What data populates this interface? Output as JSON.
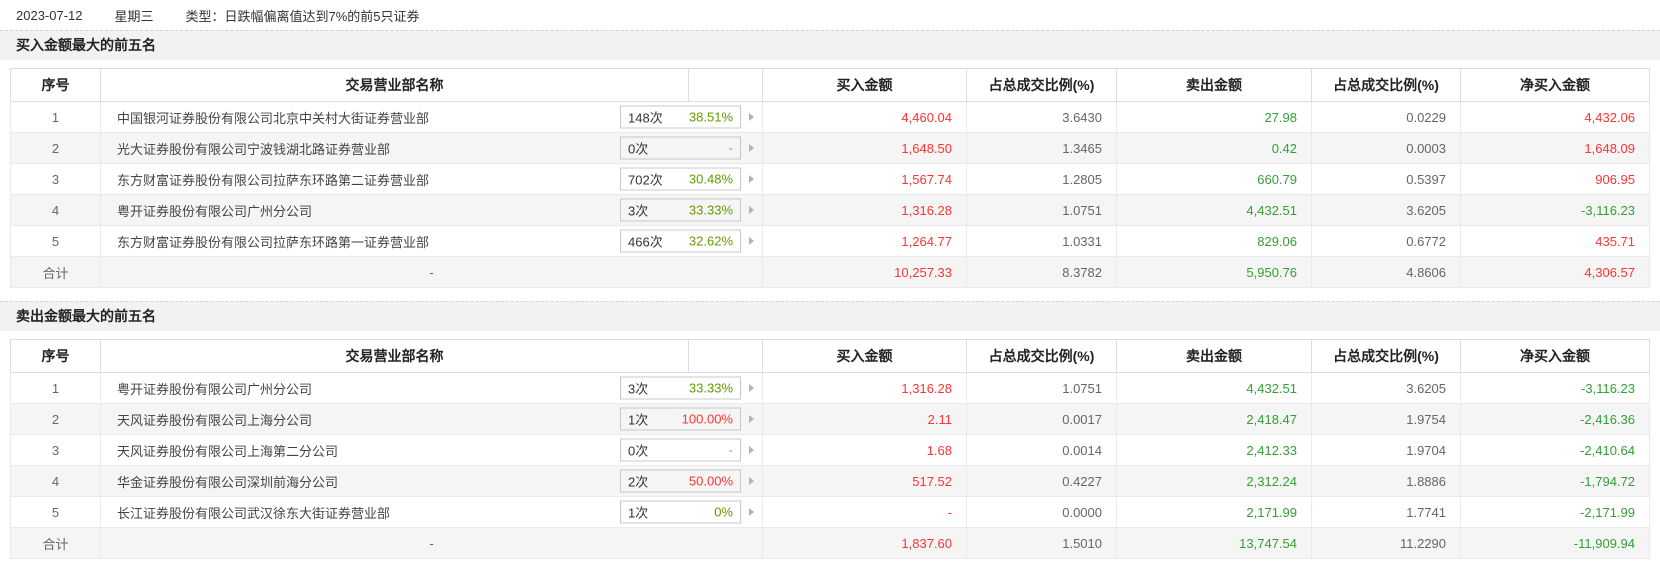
{
  "header": {
    "date": "2023-07-12",
    "weekday": "星期三",
    "type": "类型：日跌幅偏离值达到7%的前5只证券"
  },
  "colors": {
    "red": "#ff3333",
    "green": "#33a033",
    "gray": "#666666",
    "badge_green": "#669900",
    "badge_red": "#ff3333",
    "badge_gray": "#999999"
  },
  "columns": [
    "序号",
    "交易营业部名称",
    "买入金额",
    "占总成交比例(%)",
    "卖出金额",
    "占总成交比例(%)",
    "净买入金额"
  ],
  "sections": [
    {
      "title": "买入金额最大的前五名",
      "rows": [
        {
          "no": "1",
          "name": "中国银河证券股份有限公司北京中关村大街证券营业部",
          "count": "148次",
          "pct": "38.51%",
          "pct_color": "green",
          "cells": [
            {
              "v": "4,460.04",
              "c": "red"
            },
            {
              "v": "3.6430",
              "c": "gray"
            },
            {
              "v": "27.98",
              "c": "green"
            },
            {
              "v": "0.0229",
              "c": "gray"
            },
            {
              "v": "4,432.06",
              "c": "red"
            }
          ]
        },
        {
          "no": "2",
          "name": "光大证券股份有限公司宁波钱湖北路证券营业部",
          "count": "0次",
          "pct": "-",
          "pct_color": "gray",
          "cells": [
            {
              "v": "1,648.50",
              "c": "red"
            },
            {
              "v": "1.3465",
              "c": "gray"
            },
            {
              "v": "0.42",
              "c": "green"
            },
            {
              "v": "0.0003",
              "c": "gray"
            },
            {
              "v": "1,648.09",
              "c": "red"
            }
          ]
        },
        {
          "no": "3",
          "name": "东方财富证券股份有限公司拉萨东环路第二证券营业部",
          "count": "702次",
          "pct": "30.48%",
          "pct_color": "green",
          "cells": [
            {
              "v": "1,567.74",
              "c": "red"
            },
            {
              "v": "1.2805",
              "c": "gray"
            },
            {
              "v": "660.79",
              "c": "green"
            },
            {
              "v": "0.5397",
              "c": "gray"
            },
            {
              "v": "906.95",
              "c": "red"
            }
          ]
        },
        {
          "no": "4",
          "name": "粤开证券股份有限公司广州分公司",
          "count": "3次",
          "pct": "33.33%",
          "pct_color": "green",
          "cells": [
            {
              "v": "1,316.28",
              "c": "red"
            },
            {
              "v": "1.0751",
              "c": "gray"
            },
            {
              "v": "4,432.51",
              "c": "green"
            },
            {
              "v": "3.6205",
              "c": "gray"
            },
            {
              "v": "-3,116.23",
              "c": "green"
            }
          ]
        },
        {
          "no": "5",
          "name": "东方财富证券股份有限公司拉萨东环路第一证券营业部",
          "count": "466次",
          "pct": "32.62%",
          "pct_color": "green",
          "cells": [
            {
              "v": "1,264.77",
              "c": "red"
            },
            {
              "v": "1.0331",
              "c": "gray"
            },
            {
              "v": "829.06",
              "c": "green"
            },
            {
              "v": "0.6772",
              "c": "gray"
            },
            {
              "v": "435.71",
              "c": "red"
            }
          ]
        }
      ],
      "total": {
        "label": "合计",
        "name": "-",
        "cells": [
          {
            "v": "10,257.33",
            "c": "red"
          },
          {
            "v": "8.3782",
            "c": "gray"
          },
          {
            "v": "5,950.76",
            "c": "green"
          },
          {
            "v": "4.8606",
            "c": "gray"
          },
          {
            "v": "4,306.57",
            "c": "red"
          }
        ]
      }
    },
    {
      "title": "卖出金额最大的前五名",
      "rows": [
        {
          "no": "1",
          "name": "粤开证券股份有限公司广州分公司",
          "count": "3次",
          "pct": "33.33%",
          "pct_color": "green",
          "cells": [
            {
              "v": "1,316.28",
              "c": "red"
            },
            {
              "v": "1.0751",
              "c": "gray"
            },
            {
              "v": "4,432.51",
              "c": "green"
            },
            {
              "v": "3.6205",
              "c": "gray"
            },
            {
              "v": "-3,116.23",
              "c": "green"
            }
          ]
        },
        {
          "no": "2",
          "name": "天风证券股份有限公司上海分公司",
          "count": "1次",
          "pct": "100.00%",
          "pct_color": "red",
          "cells": [
            {
              "v": "2.11",
              "c": "red"
            },
            {
              "v": "0.0017",
              "c": "gray"
            },
            {
              "v": "2,418.47",
              "c": "green"
            },
            {
              "v": "1.9754",
              "c": "gray"
            },
            {
              "v": "-2,416.36",
              "c": "green"
            }
          ]
        },
        {
          "no": "3",
          "name": "天风证券股份有限公司上海第二分公司",
          "count": "0次",
          "pct": "-",
          "pct_color": "gray",
          "cells": [
            {
              "v": "1.68",
              "c": "red"
            },
            {
              "v": "0.0014",
              "c": "gray"
            },
            {
              "v": "2,412.33",
              "c": "green"
            },
            {
              "v": "1.9704",
              "c": "gray"
            },
            {
              "v": "-2,410.64",
              "c": "green"
            }
          ]
        },
        {
          "no": "4",
          "name": "华金证券股份有限公司深圳前海分公司",
          "count": "2次",
          "pct": "50.00%",
          "pct_color": "red",
          "cells": [
            {
              "v": "517.52",
              "c": "red"
            },
            {
              "v": "0.4227",
              "c": "gray"
            },
            {
              "v": "2,312.24",
              "c": "green"
            },
            {
              "v": "1.8886",
              "c": "gray"
            },
            {
              "v": "-1,794.72",
              "c": "green"
            }
          ]
        },
        {
          "no": "5",
          "name": "长江证券股份有限公司武汉徐东大街证券营业部",
          "count": "1次",
          "pct": "0%",
          "pct_color": "green",
          "cells": [
            {
              "v": "-",
              "c": "red"
            },
            {
              "v": "0.0000",
              "c": "gray"
            },
            {
              "v": "2,171.99",
              "c": "green"
            },
            {
              "v": "1.7741",
              "c": "gray"
            },
            {
              "v": "-2,171.99",
              "c": "green"
            }
          ]
        }
      ],
      "total": {
        "label": "合计",
        "name": "-",
        "cells": [
          {
            "v": "1,837.60",
            "c": "red"
          },
          {
            "v": "1.5010",
            "c": "gray"
          },
          {
            "v": "13,747.54",
            "c": "green"
          },
          {
            "v": "11.2290",
            "c": "gray"
          },
          {
            "v": "-11,909.94",
            "c": "green"
          }
        ]
      }
    }
  ]
}
